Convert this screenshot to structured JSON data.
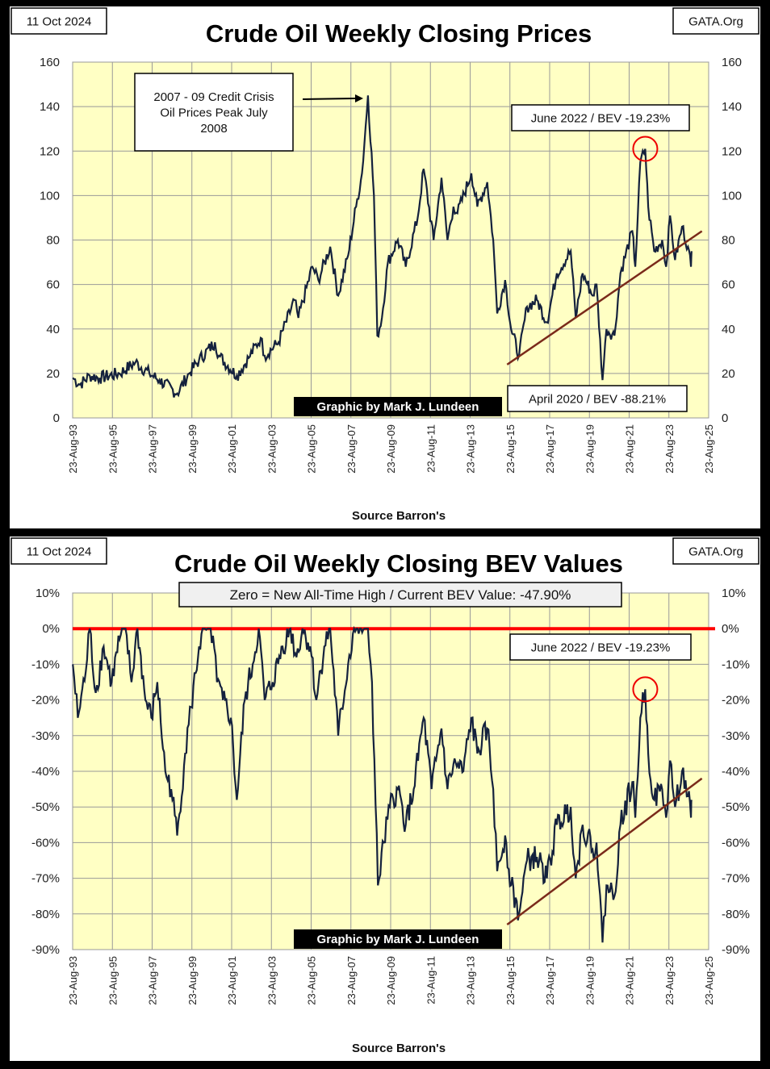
{
  "chart_data": [
    {
      "type": "line",
      "title": "Crude Oil Weekly Closing Prices",
      "date_label": "11 Oct 2024",
      "source_label": "GATA.Org",
      "xlabel": "Source Barron's",
      "credit": "Graphic by Mark J. Lundeen",
      "x_ticks": [
        "23-Aug-93",
        "23-Aug-95",
        "23-Aug-97",
        "23-Aug-99",
        "23-Aug-01",
        "23-Aug-03",
        "23-Aug-05",
        "23-Aug-07",
        "23-Aug-09",
        "23-Aug-11",
        "23-Aug-13",
        "23-Aug-15",
        "23-Aug-17",
        "23-Aug-19",
        "23-Aug-21",
        "23-Aug-23",
        "23-Aug-25"
      ],
      "xlim": [
        1993.64,
        2025.64
      ],
      "ylim": [
        0,
        160
      ],
      "y_ticks": [
        "0",
        "20",
        "40",
        "60",
        "80",
        "100",
        "120",
        "140",
        "160"
      ],
      "grid": true,
      "annotations": {
        "crisis_line1": "2007  - 09 Credit Crisis",
        "crisis_line2": "Oil Prices Peak July",
        "crisis_line3": "2008",
        "june2022": "June 2022  / BEV -19.23%",
        "april2020": "April 2020  / BEV -88.21%"
      },
      "highlight": {
        "x": 2022.45,
        "y": 121
      },
      "trendline": {
        "x": [
          2015.5,
          2025.3
        ],
        "y": [
          24,
          84
        ]
      },
      "series": [
        {
          "name": "Crude Oil",
          "color": "#14213d",
          "x": [
            1993.65,
            1994.0,
            1994.5,
            1995,
            1996,
            1996.8,
            1997.5,
            1998,
            1998.9,
            1999.5,
            2000,
            2000.8,
            2001,
            2001.9,
            2002.5,
            2003.1,
            2003.3,
            2004,
            2004.8,
            2005,
            2005.7,
            2006,
            2006.6,
            2007,
            2007.5,
            2007.9,
            2008.2,
            2008.5,
            2008.8,
            2008.97,
            2009.2,
            2009.5,
            2010,
            2010.4,
            2011,
            2011.3,
            2011.8,
            2012.2,
            2012.5,
            2012.8,
            2013,
            2013.7,
            2014,
            2014.5,
            2014.8,
            2015,
            2015.4,
            2015.7,
            2016.1,
            2016.5,
            2017,
            2017.5,
            2018,
            2018.7,
            2018.95,
            2019.3,
            2019.8,
            2020,
            2020.3,
            2020.5,
            2020.9,
            2021.2,
            2021.8,
            2021.95,
            2022.2,
            2022.45,
            2022.6,
            2022.9,
            2023.3,
            2023.5,
            2023.7,
            2023.95,
            2024.3,
            2024.6,
            2024.75,
            2024.78
          ],
          "y": [
            18,
            15,
            19,
            18,
            20,
            25,
            20,
            17,
            11,
            20,
            26,
            34,
            28,
            19,
            27,
            36,
            28,
            34,
            53,
            45,
            68,
            62,
            77,
            55,
            73,
            95,
            110,
            145,
            100,
            37,
            45,
            70,
            80,
            68,
            90,
            112,
            80,
            108,
            80,
            95,
            92,
            110,
            95,
            106,
            80,
            47,
            62,
            40,
            28,
            50,
            53,
            43,
            65,
            75,
            45,
            65,
            55,
            60,
            17,
            40,
            37,
            65,
            84,
            68,
            115,
            121,
            95,
            75,
            80,
            68,
            91,
            71,
            86,
            77,
            68,
            75
          ]
        }
      ]
    },
    {
      "type": "line",
      "title": "Crude Oil Weekly Closing BEV Values",
      "date_label": "11 Oct 2024",
      "source_label": "GATA.Org",
      "xlabel": "Source Barron's",
      "credit": "Graphic by Mark J. Lundeen",
      "x_ticks": [
        "23-Aug-93",
        "23-Aug-95",
        "23-Aug-97",
        "23-Aug-99",
        "23-Aug-01",
        "23-Aug-03",
        "23-Aug-05",
        "23-Aug-07",
        "23-Aug-09",
        "23-Aug-11",
        "23-Aug-13",
        "23-Aug-15",
        "23-Aug-17",
        "23-Aug-19",
        "23-Aug-21",
        "23-Aug-23",
        "23-Aug-25"
      ],
      "xlim": [
        1993.64,
        2025.64
      ],
      "ylim": [
        -90,
        10
      ],
      "y_ticks": [
        "-90%",
        "-80%",
        "-70%",
        "-60%",
        "-50%",
        "-40%",
        "-30%",
        "-20%",
        "-10%",
        "0%",
        "10%"
      ],
      "grid": true,
      "annotations": {
        "header_box": "Zero = New All-Time High / Current BEV Value:  -47.90%",
        "june2022": "June 2022 / BEV -19.23%"
      },
      "zero_line_color": "#ff0000",
      "highlight": {
        "x": 2022.45,
        "y": -17
      },
      "trendline": {
        "x": [
          2015.5,
          2025.3
        ],
        "y": [
          -83,
          -42
        ]
      },
      "series": [
        {
          "name": "BEV",
          "color": "#14213d",
          "x": [
            1993.65,
            1993.9,
            1994.3,
            1994.5,
            1994.8,
            1995.2,
            1995.6,
            1996,
            1996.3,
            1996.6,
            1996.9,
            1997.3,
            1997.6,
            1997.9,
            1998.3,
            1998.6,
            1998.9,
            1999.3,
            1999.6,
            2000,
            2000.3,
            2000.7,
            2000.9,
            2001.2,
            2001.6,
            2001.9,
            2002.3,
            2002.7,
            2003,
            2003.3,
            2003.7,
            2004.2,
            2004.6,
            2004.9,
            2005.2,
            2005.6,
            2005.9,
            2006.3,
            2006.6,
            2007,
            2007.5,
            2007.8,
            2008.5,
            2008.7,
            2009.0,
            2009.3,
            2009.6,
            2010,
            2010.4,
            2010.8,
            2011.3,
            2011.7,
            2012.2,
            2012.5,
            2012.8,
            2013.3,
            2013.7,
            2014,
            2014.5,
            2014.8,
            2015,
            2015.4,
            2015.7,
            2016.1,
            2016.5,
            2017,
            2017.5,
            2018,
            2018.7,
            2018.95,
            2019.3,
            2019.8,
            2020,
            2020.3,
            2020.5,
            2020.9,
            2021.2,
            2021.8,
            2021.95,
            2022.2,
            2022.45,
            2022.6,
            2022.9,
            2023.3,
            2023.5,
            2023.7,
            2023.95,
            2024.3,
            2024.6,
            2024.75,
            2024.78
          ],
          "y": [
            -10,
            -25,
            -12,
            0,
            -18,
            -5,
            -15,
            -3,
            0,
            -15,
            0,
            -20,
            -25,
            -15,
            -40,
            -45,
            -58,
            -35,
            -22,
            -5,
            0,
            -2,
            -15,
            -20,
            -25,
            -48,
            -20,
            -10,
            0,
            -20,
            -15,
            -5,
            0,
            -8,
            0,
            -5,
            -20,
            -5,
            0,
            -30,
            -10,
            0,
            0,
            -15,
            -72,
            -60,
            -50,
            -45,
            -55,
            -45,
            -25,
            -45,
            -28,
            -45,
            -38,
            -40,
            -25,
            -35,
            -28,
            -45,
            -68,
            -58,
            -72,
            -80,
            -65,
            -64,
            -70,
            -55,
            -50,
            -70,
            -55,
            -62,
            -60,
            -88,
            -72,
            -75,
            -55,
            -43,
            -53,
            -25,
            -17,
            -35,
            -48,
            -45,
            -53,
            -37,
            -50,
            -40,
            -47,
            -53,
            -48
          ]
        }
      ]
    }
  ]
}
